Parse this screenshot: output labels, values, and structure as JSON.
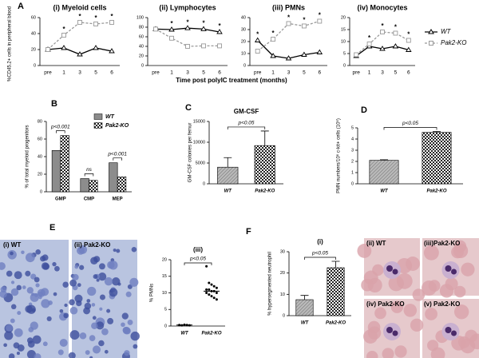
{
  "panel_labels": [
    "A",
    "B",
    "C",
    "D",
    "E",
    "F"
  ],
  "image_captions": {
    "E": [
      "(i) WT",
      "(ii) Pak2-KO"
    ],
    "F": [
      "(ii) WT",
      "(iii)Pak2-KO",
      "(iv) Pak2-KO",
      "(v) Pak2-KO"
    ]
  },
  "chart_data": [
    {
      "type": "line",
      "title": "(i) Myeloid cells",
      "ylabel": "%CD45.2+ cells in peripheral blood",
      "categories": [
        "pre",
        "1",
        "3",
        "5",
        "6"
      ],
      "series": [
        {
          "color": "#000000",
          "marker": "triangle",
          "style": "solid",
          "values": [
            20,
            22,
            14,
            22,
            18
          ]
        },
        {
          "color": "#999999",
          "marker": "square",
          "style": "dashed",
          "values": [
            20,
            38,
            54,
            52,
            54
          ]
        }
      ],
      "significance": [
        null,
        "*",
        "*",
        "*",
        "*"
      ],
      "ylim": [
        0,
        60
      ],
      "yticks": [
        0,
        20,
        40,
        60
      ]
    },
    {
      "type": "line",
      "title": "(ii) Lymphocytes",
      "categories": [
        "pre",
        "1",
        "3",
        "5",
        "6"
      ],
      "series": [
        {
          "color": "#000000",
          "marker": "triangle",
          "style": "solid",
          "values": [
            76,
            75,
            78,
            76,
            70
          ]
        },
        {
          "color": "#999999",
          "marker": "square",
          "style": "dashed",
          "values": [
            76,
            57,
            40,
            41,
            41
          ]
        }
      ],
      "significance": [
        null,
        "*",
        "*",
        "*",
        "*"
      ],
      "ylim": [
        0,
        100
      ],
      "yticks": [
        0,
        20,
        40,
        60,
        80,
        100
      ]
    },
    {
      "type": "line",
      "title": "(iii) PMNs",
      "categories": [
        "pre",
        "1",
        "3",
        "5",
        "6"
      ],
      "series": [
        {
          "color": "#000000",
          "marker": "triangle",
          "style": "solid",
          "values": [
            21,
            8,
            6,
            9,
            11
          ]
        },
        {
          "color": "#999999",
          "marker": "square",
          "style": "dashed",
          "values": [
            12,
            22,
            35,
            33,
            37
          ]
        }
      ],
      "significance": [
        "*",
        "*",
        "*",
        "*",
        "*"
      ],
      "ylim": [
        0,
        40
      ],
      "yticks": [
        0,
        10,
        20,
        30,
        40
      ]
    },
    {
      "type": "line",
      "title": "(iv) Monocytes",
      "xlabel": "Time post polyIC treatment (months)",
      "categories": [
        "pre",
        "1",
        "3",
        "5",
        "6"
      ],
      "series": [
        {
          "name": "WT",
          "color": "#000000",
          "marker": "triangle",
          "style": "solid",
          "values": [
            4,
            8,
            7,
            8,
            6.5
          ]
        },
        {
          "name": "Pak2-KO",
          "color": "#999999",
          "marker": "square",
          "style": "dashed",
          "values": [
            4.5,
            9,
            14,
            13.5,
            10.5
          ]
        }
      ],
      "significance": [
        null,
        "*",
        "*",
        "*",
        "*"
      ],
      "ylim": [
        0,
        20
      ],
      "yticks": [
        0,
        5,
        10,
        15,
        20
      ],
      "legend": "right"
    },
    {
      "type": "grouped_bar",
      "ylabel": "% of total myeloid progenitors",
      "categories": [
        "GMP",
        "CMP",
        "MEP"
      ],
      "series": [
        {
          "name": "WT",
          "fill": "#8c8c8c",
          "values": [
            47,
            15,
            33
          ]
        },
        {
          "name": "Pak2-KO",
          "fill": "checkered",
          "values": [
            64,
            13,
            17
          ]
        }
      ],
      "comparisons": [
        "p<0.001",
        "ns",
        "p<0.001"
      ],
      "ylim": [
        0,
        80
      ],
      "yticks": [
        0,
        20,
        40,
        60,
        80
      ],
      "legend": "top"
    },
    {
      "type": "bar",
      "title": "GM-CSF",
      "ylabel": "GM-CSF colonies per femur",
      "categories": [
        "WT",
        "Pak2-KO"
      ],
      "values": [
        4000,
        9200
      ],
      "errors": [
        2300,
        3500
      ],
      "fills": [
        "hatched",
        "checkered"
      ],
      "pvalue": "p<0.05",
      "ylim": [
        0,
        15000
      ],
      "yticks": [
        0,
        5000,
        10000,
        15000
      ]
    },
    {
      "type": "bar",
      "ylabel": "PMN numbers/10⁶ c-kit+ cells (10⁶)",
      "categories": [
        "WT",
        "Pak2-KO"
      ],
      "values": [
        2.1,
        4.6
      ],
      "errors": [
        0.05,
        0.08
      ],
      "fills": [
        "hatched",
        "checkered"
      ],
      "pvalue": "p<0.05",
      "ylim": [
        0,
        5
      ],
      "yticks": [
        0,
        1,
        2,
        3,
        4,
        5
      ]
    },
    {
      "type": "dot",
      "title": "(iii)",
      "ylabel": "% PMNs",
      "categories": [
        "WT",
        "Pak2-KO"
      ],
      "points": [
        [
          0.3,
          0.2,
          0.4,
          0.3,
          0.2
        ],
        [
          18,
          13,
          12.5,
          12,
          11.5,
          11,
          11,
          10.5,
          10.5,
          10,
          10,
          9.5,
          9,
          8.5,
          8
        ]
      ],
      "means": [
        0.3,
        10.5
      ],
      "pvalue": "p<0.05",
      "ylim": [
        0,
        20
      ],
      "yticks": [
        0,
        5,
        10,
        15,
        20
      ]
    },
    {
      "type": "bar",
      "title": "(i)",
      "ylabel": "% hypersegmented neutrophil",
      "categories": [
        "WT",
        "Pak2-KO"
      ],
      "values": [
        7.5,
        22.5
      ],
      "errors": [
        2,
        3
      ],
      "fills": [
        "hatched",
        "checkered"
      ],
      "pvalue": "p<0.05",
      "ylim": [
        0,
        30
      ],
      "yticks": [
        0,
        10,
        20,
        30
      ]
    }
  ]
}
